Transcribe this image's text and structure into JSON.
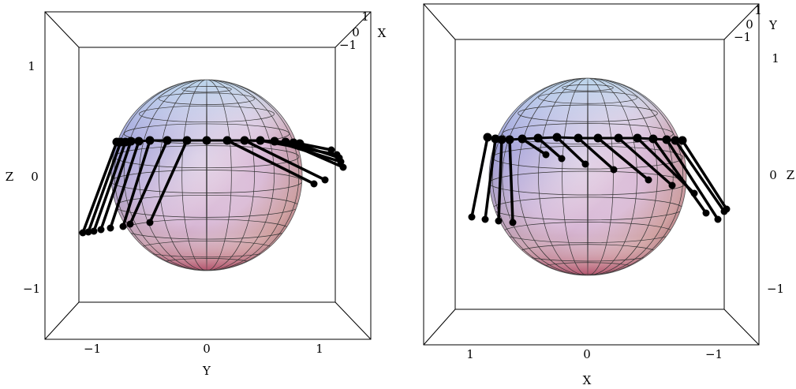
{
  "panels": [
    {
      "axis_labels": {
        "x": "X",
        "y": "Y",
        "z": "Z"
      },
      "ticks": {
        "z": [
          "1",
          "0",
          "−1"
        ],
        "y": [
          "−1",
          "0",
          "1"
        ],
        "x": [
          "1",
          "0",
          "−1"
        ]
      }
    },
    {
      "axis_labels": {
        "x": "X",
        "y": "Y",
        "z": "Z"
      },
      "ticks": {
        "z": [
          "1",
          "0",
          "−1"
        ],
        "x": [
          "1",
          "0",
          "−1"
        ],
        "y": [
          "1",
          "0",
          "−1"
        ]
      }
    }
  ]
}
